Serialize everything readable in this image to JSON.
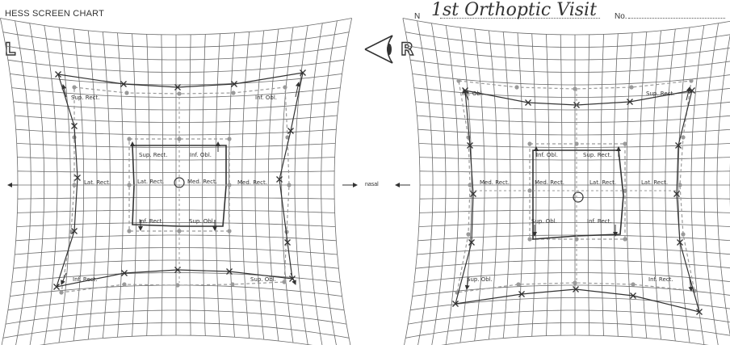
{
  "header": {
    "title": "HESS SCREEN CHART",
    "name_label": "N",
    "name_value": "1st Orthoptic Visit",
    "number_label": "No."
  },
  "eyes": {
    "left": "L",
    "right": "R",
    "fixing_eye_icon": "eye-icon"
  },
  "axis": {
    "nasal_label": "nasal"
  },
  "left_chart": {
    "inner_labels": [
      "Sup. Rect.",
      "Inf. Obl.",
      "Lat. Rect.",
      "Med. Rect.",
      "Inf. Rect.",
      "Sup. Obl."
    ],
    "outer_labels": [
      "Sup. Rect.",
      "Inf. Obl.",
      "Lat. Rect.",
      "Med. Rect.",
      "Inf. Rect.",
      "Sup. Obl."
    ]
  },
  "right_chart": {
    "inner_labels": [
      "Inf. Obl.",
      "Sup. Rect.",
      "Med. Rect.",
      "Lat. Rect.",
      "Sup. Obl.",
      "Inf. Rect."
    ],
    "outer_labels": [
      "Inf. Obl.",
      "Sup. Rect.",
      "Med. Rect.",
      "Lat. Rect.",
      "Sup. Obl.",
      "Inf. Rect."
    ]
  },
  "colors": {
    "grid": "#6b6b6b",
    "plot": "#333333",
    "reference_dots": "#9a9a9a"
  }
}
